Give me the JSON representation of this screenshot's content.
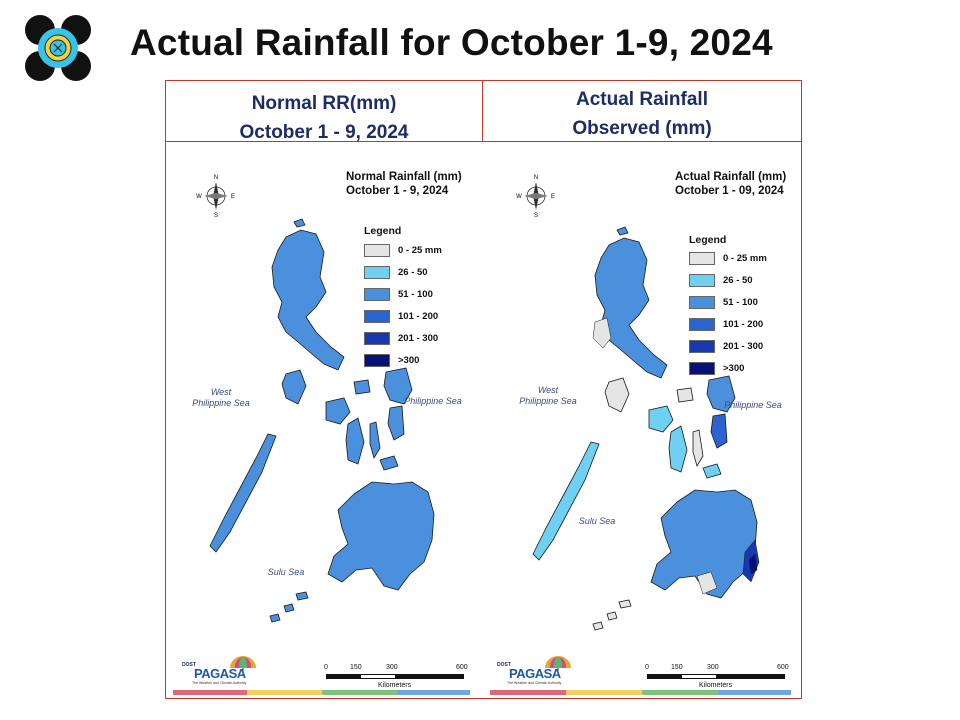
{
  "slide": {
    "title": "Actual Rainfall for October 1-9, 2024"
  },
  "colors": {
    "frame": "#c0392b",
    "header_text": "#1c2c66",
    "class_0_25": "#e5e5e5",
    "class_26_50": "#6fd0f3",
    "class_51_100": "#4a90dd",
    "class_101_200": "#2a64d0",
    "class_201_300": "#1838b0",
    "class_gt_300": "#08107a",
    "bottom_bar": [
      "#d9687a",
      "#f0d060",
      "#7ec27e",
      "#6aaad8"
    ]
  },
  "left_panel": {
    "header_line1": "Normal RR(mm)",
    "header_line2": "October 1 - 9, 2024",
    "map_title_line1": "Normal Rainfall (mm)",
    "map_title_line2": "October 1 - 9, 2024",
    "legend_title": "Legend",
    "legend": [
      {
        "label": "0 - 25 mm",
        "color": "#e5e5e5"
      },
      {
        "label": "26 - 50",
        "color": "#6fd0f3"
      },
      {
        "label": "51 - 100",
        "color": "#4a90dd"
      },
      {
        "label": "101 - 200",
        "color": "#2a64d0"
      },
      {
        "label": "201 - 300",
        "color": "#1838b0"
      },
      {
        "label": ">300",
        "color": "#08107a"
      }
    ],
    "seas": {
      "west_line1": "West",
      "west_line2": "Philippine Sea",
      "east": "Philippine Sea",
      "sulu": "Sulu Sea"
    },
    "scale": {
      "ticks": [
        "0",
        "150",
        "300",
        "600"
      ],
      "unit": "Kilometers"
    },
    "compass": {
      "n": "N",
      "s": "S",
      "e": "E",
      "w": "W"
    },
    "brand": {
      "top": "DOST",
      "name": "PAGASA",
      "tag": "The Weather and Climate Authority"
    }
  },
  "right_panel": {
    "header_line1": "Actual Rainfall",
    "header_line2": "Observed (mm)",
    "map_title_line1": "Actual Rainfall (mm)",
    "map_title_line2": "October 1 - 09, 2024",
    "legend_title": "Legend",
    "legend": [
      {
        "label": "0 - 25 mm",
        "color": "#e5e5e5"
      },
      {
        "label": "26 - 50",
        "color": "#6fd0f3"
      },
      {
        "label": "51 - 100",
        "color": "#4a90dd"
      },
      {
        "label": "101 - 200",
        "color": "#2a64d0"
      },
      {
        "label": "201 - 300",
        "color": "#1838b0"
      },
      {
        "label": ">300",
        "color": "#08107a"
      }
    ],
    "seas": {
      "west_line1": "West",
      "west_line2": "Philippine Sea",
      "east": "Philippine Sea",
      "sulu": "Sulu Sea"
    },
    "scale": {
      "ticks": [
        "0",
        "150",
        "300",
        "600"
      ],
      "unit": "Kilometers"
    },
    "compass": {
      "n": "N",
      "s": "S",
      "e": "E",
      "w": "W"
    },
    "brand": {
      "top": "DOST",
      "name": "PAGASA",
      "tag": "The Weather and Climate Authority"
    }
  }
}
